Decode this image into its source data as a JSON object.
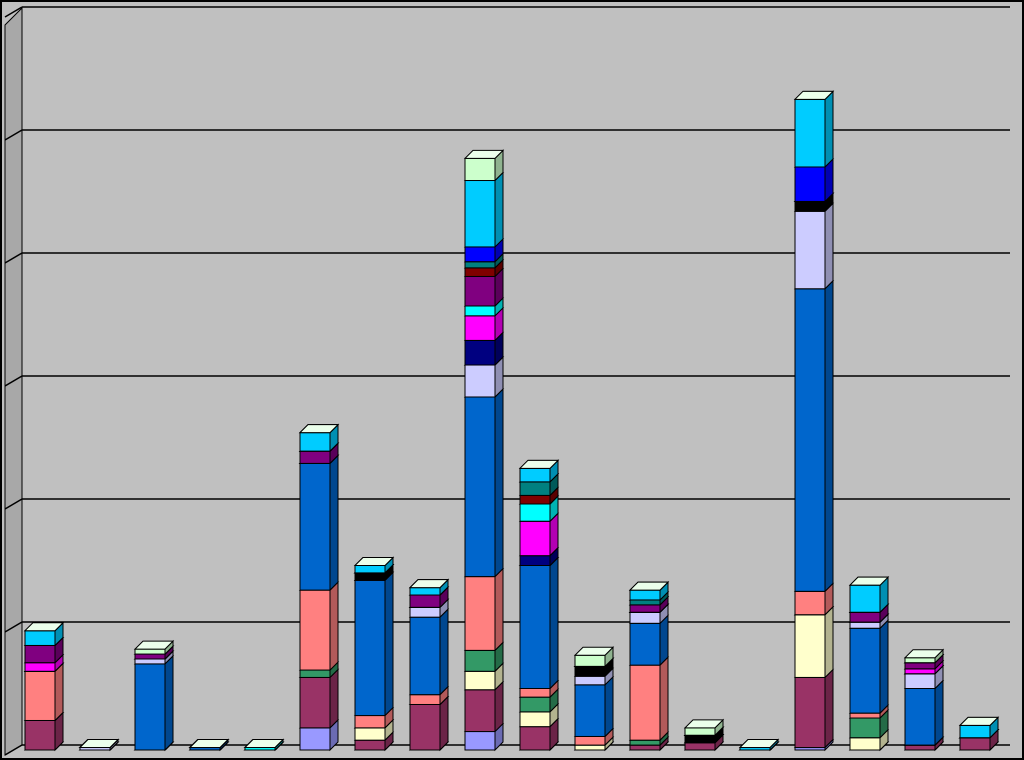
{
  "chart_data": {
    "type": "stacked-bar-3d",
    "ylim": [
      0,
      6
    ],
    "yticks": [
      0,
      1,
      2,
      3,
      4,
      5,
      6
    ],
    "grid": true,
    "series": [
      {
        "color": "#9999ff",
        "values": [
          0,
          0,
          0,
          0,
          0,
          0.18,
          0,
          0,
          0.15,
          0,
          0,
          0,
          0,
          0,
          0.02,
          0,
          0,
          0
        ]
      },
      {
        "color": "#993366",
        "values": [
          0.24,
          0,
          0,
          0,
          0,
          0.41,
          0.08,
          0.37,
          0.34,
          0.19,
          0,
          0.04,
          0.06,
          0,
          0.57,
          0,
          0.04,
          0.1
        ]
      },
      {
        "color": "#ffffcc",
        "values": [
          0,
          0,
          0,
          0,
          0,
          0,
          0.1,
          0,
          0.15,
          0.12,
          0.04,
          0,
          0,
          0,
          0.51,
          0.1,
          0,
          0
        ]
      },
      {
        "color": "#339966",
        "values": [
          0,
          0,
          0,
          0,
          0,
          0.06,
          0,
          0,
          0.17,
          0.12,
          0,
          0.04,
          0,
          0,
          0,
          0.16,
          0,
          0
        ]
      },
      {
        "color": "#ff8080",
        "values": [
          0.4,
          0,
          0,
          0,
          0,
          0.65,
          0.1,
          0.08,
          0.6,
          0.07,
          0.07,
          0.61,
          0,
          0,
          0.19,
          0.04,
          0,
          0
        ]
      },
      {
        "color": "#0066cc",
        "values": [
          0,
          0,
          0.7,
          0.02,
          0,
          1.03,
          1.1,
          0.63,
          1.46,
          1.0,
          0.42,
          0.34,
          0,
          0,
          2.46,
          0.69,
          0.46,
          0
        ]
      },
      {
        "color": "#ccccff",
        "values": [
          0,
          0.02,
          0.04,
          0,
          0,
          0,
          0,
          0.08,
          0.26,
          0,
          0.07,
          0.09,
          0,
          0,
          0.63,
          0.05,
          0.12,
          0
        ]
      },
      {
        "color": "#000000",
        "values": [
          0,
          0,
          0,
          0,
          0,
          0,
          0.06,
          0,
          0,
          0,
          0.08,
          0,
          0.06,
          0,
          0.08,
          0,
          0,
          0
        ]
      },
      {
        "color": "#000080",
        "values": [
          0,
          0,
          0,
          0,
          0,
          0,
          0,
          0,
          0.2,
          0.08,
          0,
          0,
          0,
          0,
          0,
          0,
          0,
          0
        ]
      },
      {
        "color": "#ff00ff",
        "values": [
          0.07,
          0,
          0,
          0,
          0,
          0,
          0,
          0,
          0.2,
          0.28,
          0,
          0,
          0,
          0,
          0,
          0,
          0.04,
          0
        ]
      },
      {
        "color": "#00ffff",
        "values": [
          0,
          0,
          0,
          0,
          0.02,
          0,
          0,
          0,
          0.08,
          0.14,
          0,
          0,
          0,
          0,
          0,
          0,
          0,
          0
        ]
      },
      {
        "color": "#800080",
        "values": [
          0.14,
          0,
          0.04,
          0,
          0,
          0.1,
          0,
          0.1,
          0.24,
          0,
          0,
          0.06,
          0,
          0,
          0,
          0.08,
          0.05,
          0
        ]
      },
      {
        "color": "#800000",
        "values": [
          0,
          0,
          0,
          0,
          0,
          0,
          0,
          0,
          0.07,
          0.07,
          0,
          0,
          0,
          0,
          0,
          0,
          0,
          0
        ]
      },
      {
        "color": "#008080",
        "values": [
          0,
          0,
          0,
          0,
          0,
          0,
          0,
          0,
          0.05,
          0.11,
          0,
          0.04,
          0,
          0,
          0,
          0,
          0,
          0
        ]
      },
      {
        "color": "#0000ff",
        "values": [
          0,
          0,
          0,
          0,
          0,
          0,
          0,
          0,
          0.12,
          0,
          0,
          0,
          0,
          0,
          0.28,
          0,
          0,
          0
        ]
      },
      {
        "color": "#00ccff",
        "values": [
          0.12,
          0,
          0,
          0,
          0,
          0.15,
          0.06,
          0.06,
          0.54,
          0.11,
          0,
          0.08,
          0,
          0.02,
          0.55,
          0.22,
          0,
          0.1
        ]
      },
      {
        "color": "#ccffcc",
        "values": [
          0,
          0,
          0.04,
          0,
          0,
          0,
          0,
          0,
          0.18,
          0,
          0.09,
          0,
          0.06,
          0,
          0,
          0,
          0.04,
          0
        ]
      }
    ]
  }
}
